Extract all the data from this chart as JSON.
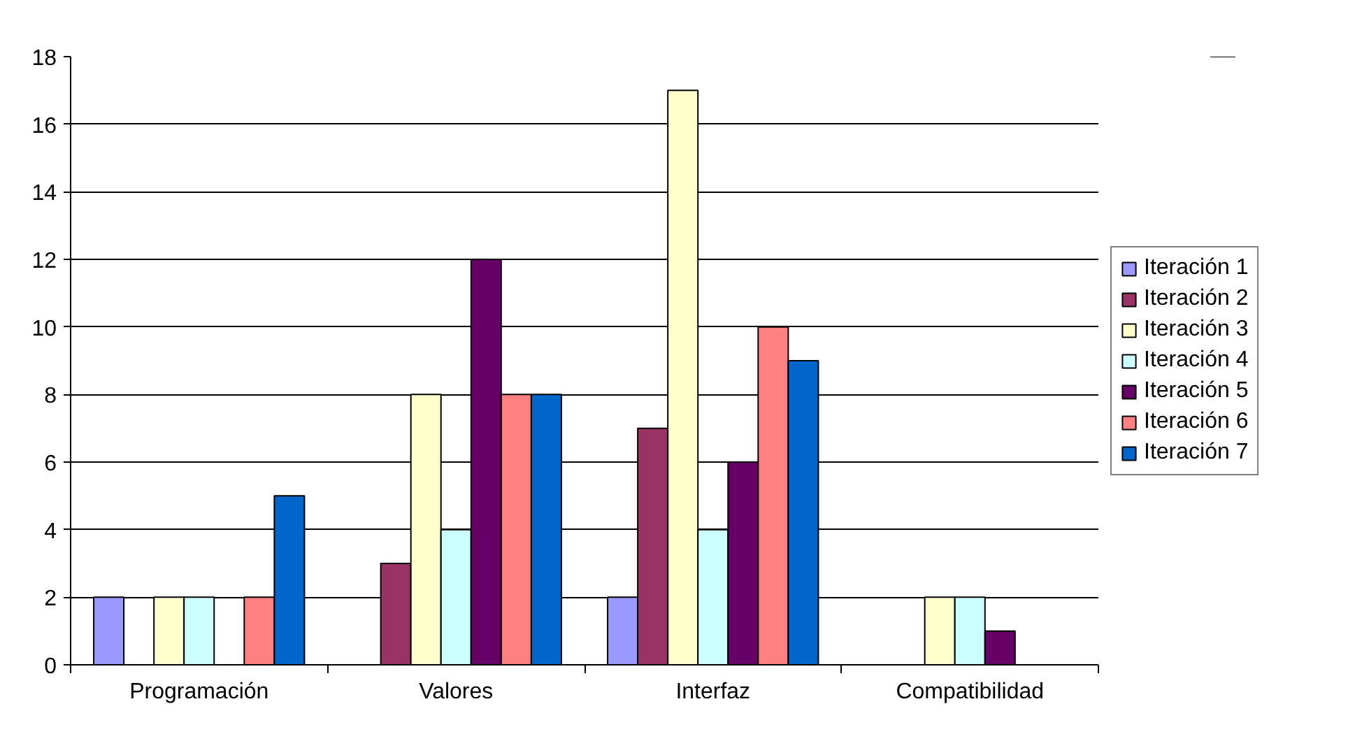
{
  "chart_data": {
    "type": "bar",
    "categories": [
      "Programación",
      "Valores",
      "Interfaz",
      "Compatibilidad"
    ],
    "series": [
      {
        "name": "Iteración 1",
        "color": "#9999ff",
        "values": [
          2,
          0,
          2,
          0
        ]
      },
      {
        "name": "Iteración 2",
        "color": "#993366",
        "values": [
          0,
          3,
          7,
          0
        ]
      },
      {
        "name": "Iteración 3",
        "color": "#ffffcc",
        "values": [
          2,
          8,
          17,
          2
        ]
      },
      {
        "name": "Iteración 4",
        "color": "#ccffff",
        "values": [
          2,
          4,
          4,
          2
        ]
      },
      {
        "name": "Iteración 5",
        "color": "#660066",
        "values": [
          0,
          12,
          6,
          1
        ]
      },
      {
        "name": "Iteración 6",
        "color": "#ff8080",
        "values": [
          2,
          8,
          10,
          0
        ]
      },
      {
        "name": "Iteración 7",
        "color": "#0066cc",
        "values": [
          5,
          8,
          9,
          0
        ]
      }
    ],
    "ylim": [
      0,
      18
    ],
    "yticks": [
      0,
      2,
      4,
      6,
      8,
      10,
      12,
      14,
      16,
      18
    ],
    "grid": "y",
    "legend": "right"
  }
}
